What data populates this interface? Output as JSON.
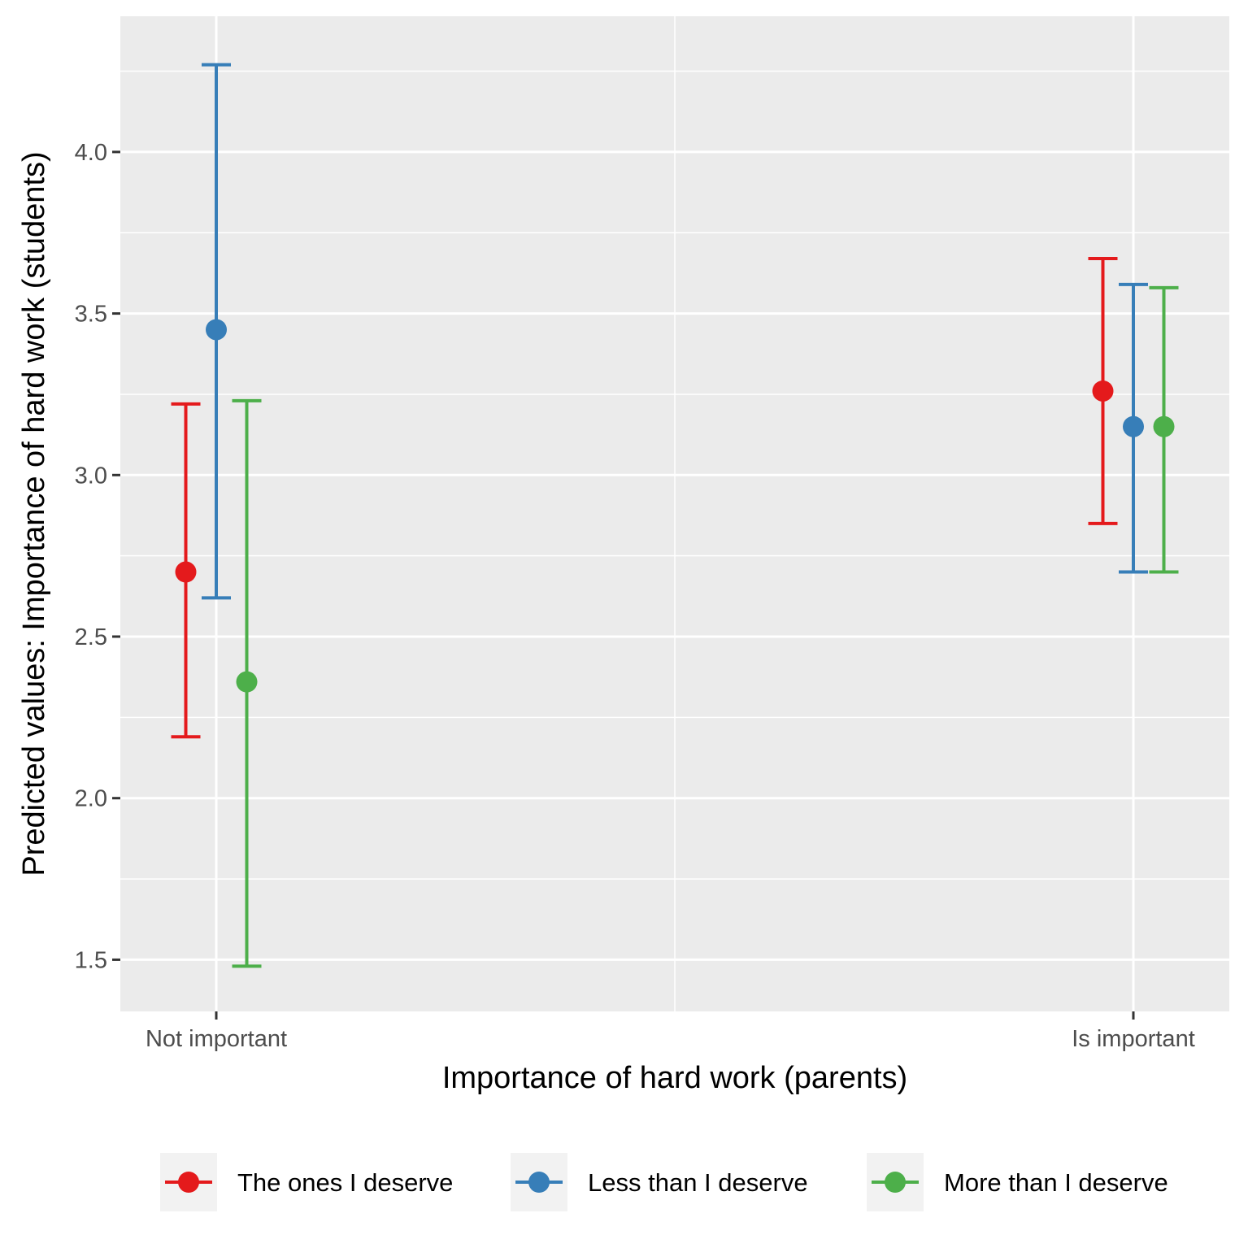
{
  "chart_data": {
    "type": "scatter",
    "subtype": "point-errorbar",
    "title": "",
    "xlabel": "Importance of hard work (parents)",
    "ylabel": "Predicted values: Importance of hard work (students)",
    "categories": [
      "Not important",
      "Is important"
    ],
    "ylim": [
      1.34,
      4.42
    ],
    "yticks": [
      {
        "value": 1.5,
        "label": "1.5"
      },
      {
        "value": 2.0,
        "label": "2.0"
      },
      {
        "value": 2.5,
        "label": "2.5"
      },
      {
        "value": 3.0,
        "label": "3.0"
      },
      {
        "value": 3.5,
        "label": "3.5"
      },
      {
        "value": 4.0,
        "label": "4.0"
      }
    ],
    "grid": true,
    "legend_position": "bottom",
    "series": [
      {
        "name": "The ones I deserve",
        "color": "#E41A1C",
        "values": [
          2.7,
          3.26
        ],
        "lower": [
          2.19,
          2.85
        ],
        "upper": [
          3.22,
          3.67
        ]
      },
      {
        "name": "Less than I deserve",
        "color": "#377EB8",
        "values": [
          3.45,
          3.15
        ],
        "lower": [
          2.62,
          2.7
        ],
        "upper": [
          4.27,
          3.59
        ]
      },
      {
        "name": "More than I deserve",
        "color": "#4DAF4A",
        "values": [
          2.36,
          3.15
        ],
        "lower": [
          1.48,
          2.7
        ],
        "upper": [
          3.23,
          3.58
        ]
      }
    ]
  }
}
